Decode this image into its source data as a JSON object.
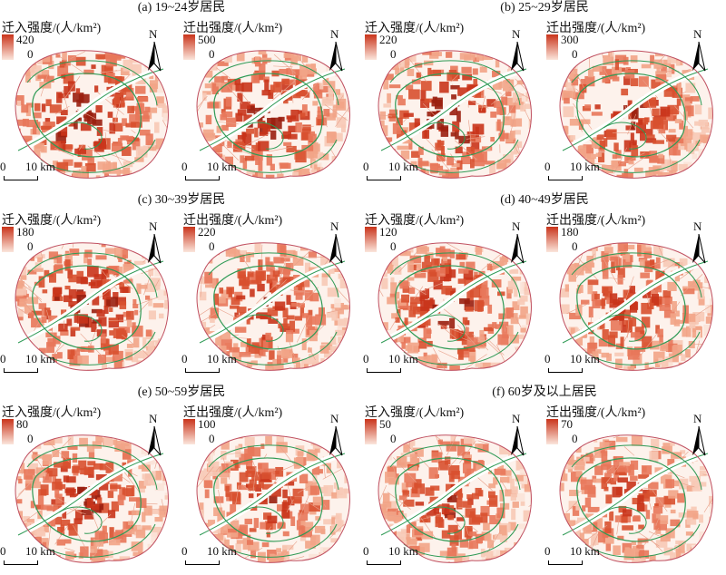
{
  "labels": {
    "in_intensity": "迁入强度/(人/km²)",
    "out_intensity": "迁出强度/(人/km²)",
    "north": "N",
    "scale_zero": "0",
    "scale_ten": "10 km",
    "legend_min": "0"
  },
  "colors": {
    "ramp_high": "#c9341b",
    "ramp_low": "#fbe6dc",
    "green_lines": "#2e9a55",
    "outline": "#c05060",
    "street_lines": "#e8a08a"
  },
  "panels": [
    {
      "title": "(a) 19~24岁居民",
      "in_max": "420",
      "out_max": "500"
    },
    {
      "title": "(b) 25~29岁居民",
      "in_max": "220",
      "out_max": "300"
    },
    {
      "title": "(c) 30~39岁居民",
      "in_max": "180",
      "out_max": "220"
    },
    {
      "title": "(d) 40~49岁居民",
      "in_max": "120",
      "out_max": "180"
    },
    {
      "title": "(e) 50~59岁居民",
      "in_max": "80",
      "out_max": "100"
    },
    {
      "title": "(f) 60岁及以上居民",
      "in_max": "50",
      "out_max": "70"
    }
  ]
}
